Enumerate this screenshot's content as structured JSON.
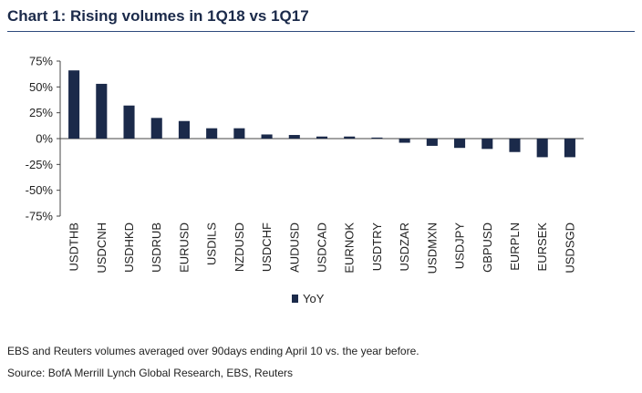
{
  "title": "Chart 1: Rising volumes in 1Q18 vs 1Q17",
  "footnote": "EBS and Reuters volumes averaged over 90days ending April 10 vs. the year before.",
  "source": "Source: BofA Merrill Lynch Global Research, EBS, Reuters",
  "colors": {
    "bar": "#1b2a4a",
    "axis": "#444444",
    "rule": "#2e4a7d"
  },
  "chart_data": {
    "type": "bar",
    "title": "Chart 1: Rising volumes in 1Q18 vs 1Q17",
    "xlabel": "",
    "ylabel": "",
    "categories": [
      "USDTHB",
      "USDCNH",
      "USDHKD",
      "USDRUB",
      "EURUSD",
      "USDILS",
      "NZDUSD",
      "USDCHF",
      "AUDUSD",
      "USDCAD",
      "EURNOK",
      "USDTRY",
      "USDZAR",
      "USDMXN",
      "USDJPY",
      "GBPUSD",
      "EURPLN",
      "EURSEK",
      "USDSGD"
    ],
    "series": [
      {
        "name": "YoY",
        "values": [
          66,
          53,
          32,
          20,
          17,
          10,
          10,
          4,
          3.5,
          2,
          2,
          1,
          -4,
          -7,
          -9,
          -10,
          -13,
          -18,
          -18
        ]
      }
    ],
    "ylim": [
      -75,
      75
    ],
    "yticks": [
      "75%",
      "50%",
      "25%",
      "0%",
      "-25%",
      "-50%",
      "-75%"
    ],
    "ytick_values": [
      75,
      50,
      25,
      0,
      -25,
      -50,
      -75
    ],
    "legend": "bottom-center",
    "grid": false
  }
}
